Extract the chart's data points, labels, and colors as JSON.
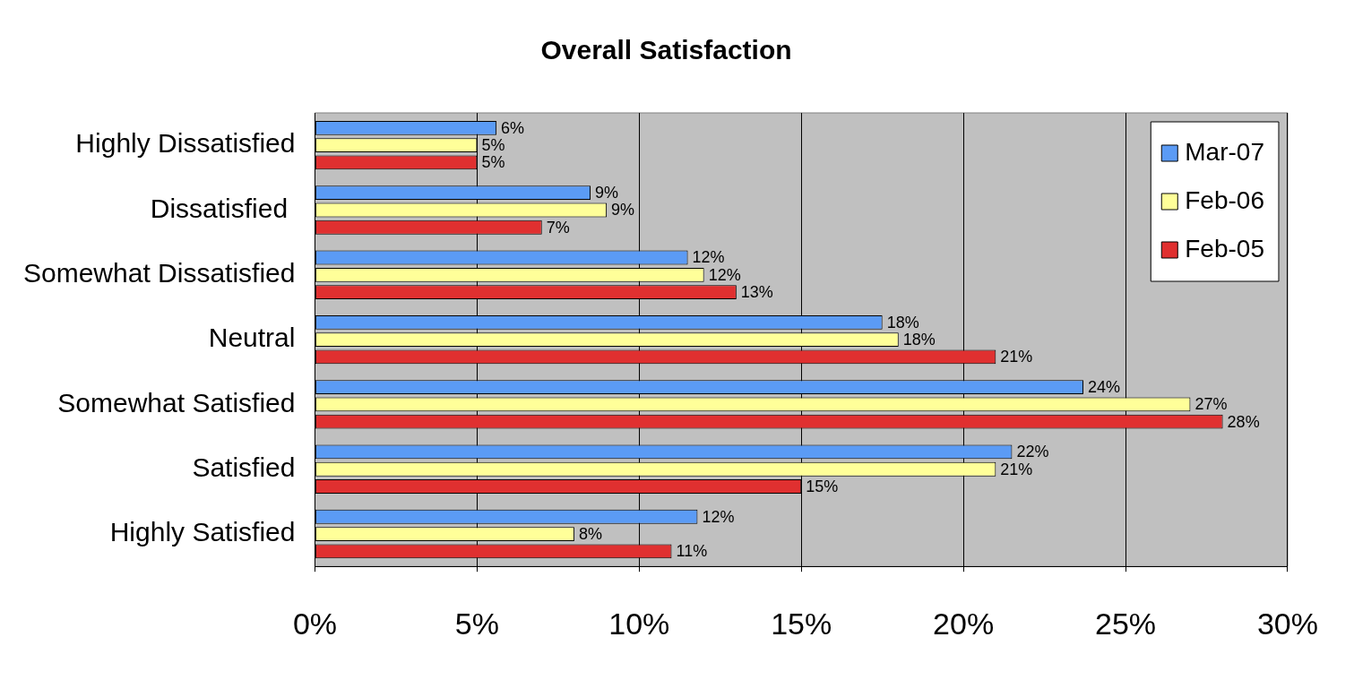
{
  "chart_data": {
    "type": "bar",
    "orientation": "horizontal",
    "title": "Overall Satisfaction",
    "categories": [
      "Highly Dissatisfied",
      "Dissatisfied ",
      "Somewhat Dissatisfied",
      "Neutral",
      "Somewhat Satisfied",
      "Satisfied",
      "Highly Satisfied"
    ],
    "series": [
      {
        "name": "Mar-07",
        "color": "#5b9bf5",
        "values": [
          5.6,
          8.5,
          11.5,
          17.5,
          23.7,
          21.5,
          11.8
        ],
        "value_labels": [
          "6%",
          "9%",
          "12%",
          "18%",
          "24%",
          "22%",
          "12%"
        ]
      },
      {
        "name": "Feb-06",
        "color": "#ffff99",
        "values": [
          5.0,
          9.0,
          12.0,
          18.0,
          27.0,
          21.0,
          8.0
        ],
        "value_labels": [
          "5%",
          "9%",
          "12%",
          "18%",
          "27%",
          "21%",
          "8%"
        ]
      },
      {
        "name": "Feb-05",
        "color": "#e03030",
        "values": [
          5.0,
          7.0,
          13.0,
          21.0,
          28.0,
          15.0,
          11.0
        ],
        "value_labels": [
          "5%",
          "7%",
          "13%",
          "21%",
          "28%",
          "15%",
          "11%"
        ]
      }
    ],
    "xlim": [
      0,
      30
    ],
    "xticks": [
      {
        "value": 0,
        "label": "0%"
      },
      {
        "value": 5,
        "label": "5%"
      },
      {
        "value": 10,
        "label": "10%"
      },
      {
        "value": 15,
        "label": "15%"
      },
      {
        "value": 20,
        "label": "20%"
      },
      {
        "value": 25,
        "label": "25%"
      },
      {
        "value": 30,
        "label": "30%"
      }
    ],
    "grid": "x",
    "legend": "top right"
  }
}
